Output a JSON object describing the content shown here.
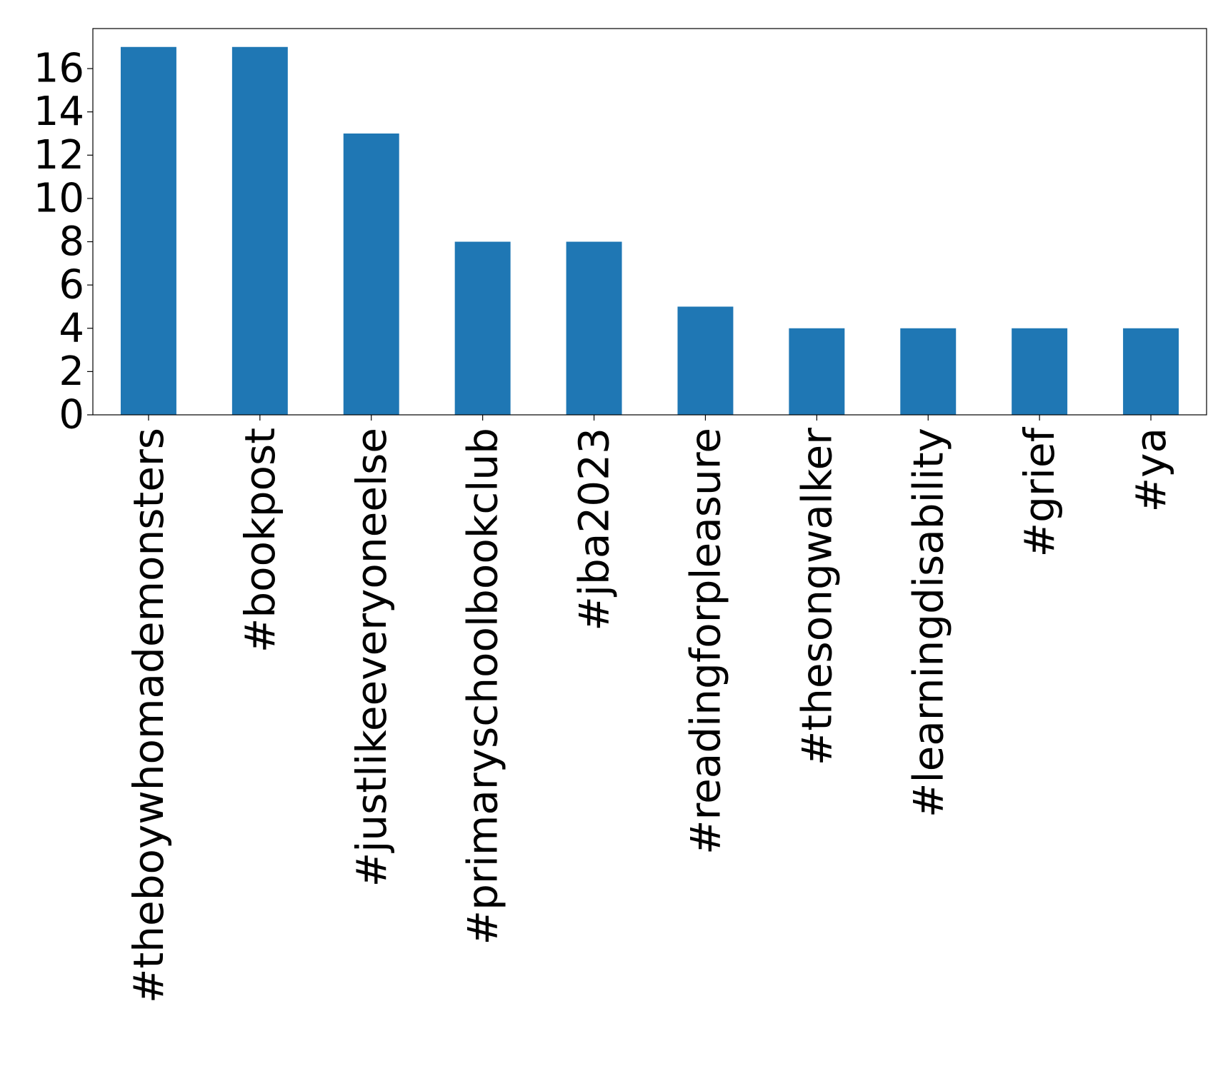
{
  "chart_data": {
    "type": "bar",
    "title": "",
    "xlabel": "",
    "ylabel": "",
    "categories": [
      "#theboywhomademonsters",
      "#bookpost",
      "#justlikeeveryoneelse",
      "#primaryschoolbookclub",
      "#jba2023",
      "#readingforpleasure",
      "#thesongwalker",
      "#learningdisability",
      "#grief",
      "#ya"
    ],
    "values": [
      17,
      17,
      13,
      8,
      8,
      5,
      4,
      4,
      4,
      4
    ],
    "ylim": [
      0,
      17.85
    ],
    "yticks": [
      0,
      2,
      4,
      6,
      8,
      10,
      12,
      14,
      16
    ],
    "ytick_labels": [
      "0",
      "2",
      "4",
      "6",
      "8",
      "10",
      "12",
      "14",
      "16"
    ],
    "grid": false,
    "legend": "none",
    "colors": {
      "bar": "#1f77b4",
      "axes": "#000000",
      "background": "#ffffff"
    }
  }
}
